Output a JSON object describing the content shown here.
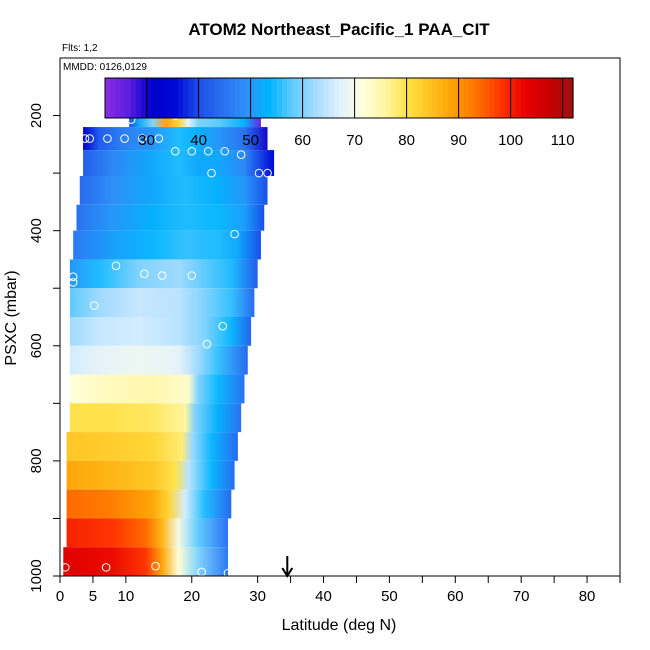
{
  "chart_data": {
    "type": "heatmap",
    "title": "ATOM2 Northeast_Pacific_1 PAA_CIT",
    "flights_note": "Flts: 1,2",
    "dates_note": "MMDD: 0126,0129",
    "xlabel": "Latitude (deg N)",
    "ylabel": "PSXC (mbar)",
    "xlim": [
      0,
      85
    ],
    "ylim": [
      1000,
      100
    ],
    "x_ticks": [
      0,
      5,
      10,
      20,
      30,
      40,
      50,
      60,
      70,
      80
    ],
    "x_minor_ticks": [
      35,
      45,
      55,
      65,
      75,
      85
    ],
    "y_ticks": [
      200,
      400,
      600,
      800,
      1000
    ],
    "y_minor_ticks": [
      300,
      500,
      700,
      900
    ],
    "colorbar": {
      "range": [
        22,
        112
      ],
      "ticks": [
        30,
        40,
        50,
        60,
        70,
        80,
        90,
        100,
        110
      ],
      "colors": [
        "#8a2be2",
        "#5a1fe0",
        "#0000c8",
        "#0008d8",
        "#1a4fe8",
        "#2a6ff0",
        "#2f8ff8",
        "#00b4ff",
        "#5fcbff",
        "#a8dcff",
        "#dff0ff",
        "#ffffe0",
        "#fff5a0",
        "#ffe040",
        "#ffbe1e",
        "#ff9a00",
        "#ff6a00",
        "#ff3000",
        "#e60000",
        "#c80000",
        "#a01010"
      ]
    },
    "marker_latitude": 34.5,
    "rows": [
      {
        "p_top": 170,
        "p_bot": 220,
        "lat_start": 10.5,
        "lat_end": 30.5,
        "stops": [
          [
            10.5,
            40
          ],
          [
            12,
            52
          ],
          [
            14,
            60
          ],
          [
            16,
            88
          ],
          [
            18,
            82
          ],
          [
            19.5,
            68
          ],
          [
            21,
            60
          ],
          [
            24,
            58
          ],
          [
            28,
            53
          ],
          [
            30.5,
            25
          ]
        ]
      },
      {
        "p_top": 220,
        "p_bot": 260,
        "lat_start": 3.5,
        "lat_end": 31.5,
        "stops": [
          [
            3.5,
            32
          ],
          [
            6,
            42
          ],
          [
            10,
            47
          ],
          [
            14,
            50
          ],
          [
            18,
            55
          ],
          [
            21,
            53
          ],
          [
            24,
            50
          ],
          [
            28,
            45
          ],
          [
            31.5,
            30
          ]
        ]
      },
      {
        "p_top": 260,
        "p_bot": 305,
        "lat_start": 3.5,
        "lat_end": 32.5,
        "stops": [
          [
            3.5,
            42
          ],
          [
            8,
            48
          ],
          [
            14,
            52
          ],
          [
            18,
            55
          ],
          [
            21,
            52
          ],
          [
            24,
            52
          ],
          [
            28,
            48
          ],
          [
            32.5,
            35
          ]
        ]
      },
      {
        "p_top": 305,
        "p_bot": 355,
        "lat_start": 3.0,
        "lat_end": 31.5,
        "stops": [
          [
            3,
            44
          ],
          [
            8,
            49
          ],
          [
            14,
            52
          ],
          [
            19,
            55
          ],
          [
            24,
            53
          ],
          [
            28,
            50
          ],
          [
            31.5,
            40
          ]
        ]
      },
      {
        "p_top": 355,
        "p_bot": 400,
        "lat_start": 2.5,
        "lat_end": 31.0,
        "stops": [
          [
            2.5,
            45
          ],
          [
            8,
            50
          ],
          [
            14,
            53
          ],
          [
            19,
            55
          ],
          [
            24,
            54
          ],
          [
            28,
            51
          ],
          [
            31,
            40
          ]
        ]
      },
      {
        "p_top": 400,
        "p_bot": 450,
        "lat_start": 2.0,
        "lat_end": 30.5,
        "stops": [
          [
            2,
            46
          ],
          [
            8,
            51
          ],
          [
            14,
            54
          ],
          [
            19,
            56
          ],
          [
            24,
            55
          ],
          [
            27,
            52
          ],
          [
            30.5,
            40
          ]
        ]
      },
      {
        "p_top": 450,
        "p_bot": 500,
        "lat_start": 1.5,
        "lat_end": 30.0,
        "stops": [
          [
            1.5,
            50
          ],
          [
            6,
            55
          ],
          [
            12,
            60
          ],
          [
            18,
            62
          ],
          [
            22,
            58
          ],
          [
            26,
            55
          ],
          [
            30,
            42
          ]
        ]
      },
      {
        "p_top": 500,
        "p_bot": 550,
        "lat_start": 1.5,
        "lat_end": 29.5,
        "stops": [
          [
            1.5,
            58
          ],
          [
            6,
            62
          ],
          [
            12,
            65
          ],
          [
            18,
            64
          ],
          [
            22,
            60
          ],
          [
            26,
            56
          ],
          [
            29.5,
            44
          ]
        ]
      },
      {
        "p_top": 550,
        "p_bot": 600,
        "lat_start": 1.5,
        "lat_end": 29.0,
        "stops": [
          [
            1.5,
            62
          ],
          [
            6,
            65
          ],
          [
            12,
            66
          ],
          [
            18,
            64
          ],
          [
            22,
            60
          ],
          [
            26,
            54
          ],
          [
            29,
            43
          ]
        ]
      },
      {
        "p_top": 600,
        "p_bot": 650,
        "lat_start": 1.5,
        "lat_end": 28.5,
        "stops": [
          [
            1.5,
            66
          ],
          [
            6,
            68
          ],
          [
            12,
            69
          ],
          [
            18,
            68
          ],
          [
            21,
            62
          ],
          [
            24,
            56
          ],
          [
            28.5,
            44
          ]
        ]
      },
      {
        "p_top": 650,
        "p_bot": 700,
        "lat_start": 1.5,
        "lat_end": 28.0,
        "stops": [
          [
            1.5,
            72
          ],
          [
            8,
            74
          ],
          [
            14,
            75
          ],
          [
            19.5,
            73
          ],
          [
            21,
            60
          ],
          [
            24,
            54
          ],
          [
            28,
            45
          ]
        ]
      },
      {
        "p_top": 700,
        "p_bot": 750,
        "lat_start": 1.5,
        "lat_end": 27.5,
        "stops": [
          [
            1.5,
            80
          ],
          [
            8,
            80
          ],
          [
            14,
            79
          ],
          [
            19,
            76
          ],
          [
            20.5,
            60
          ],
          [
            24,
            53
          ],
          [
            27.5,
            45
          ]
        ]
      },
      {
        "p_top": 750,
        "p_bot": 800,
        "lat_start": 1.0,
        "lat_end": 27.0,
        "stops": [
          [
            1,
            84
          ],
          [
            8,
            83
          ],
          [
            14,
            82
          ],
          [
            18.5,
            78
          ],
          [
            20,
            62
          ],
          [
            23,
            54
          ],
          [
            27,
            44
          ]
        ]
      },
      {
        "p_top": 800,
        "p_bot": 850,
        "lat_start": 1.0,
        "lat_end": 26.5,
        "stops": [
          [
            1,
            88
          ],
          [
            8,
            86
          ],
          [
            14,
            84
          ],
          [
            17.5,
            80
          ],
          [
            19.5,
            64
          ],
          [
            23,
            54
          ],
          [
            26.5,
            44
          ]
        ]
      },
      {
        "p_top": 850,
        "p_bot": 900,
        "lat_start": 1.0,
        "lat_end": 26.0,
        "stops": [
          [
            1,
            94
          ],
          [
            8,
            92
          ],
          [
            14,
            88
          ],
          [
            16.5,
            82
          ],
          [
            19,
            66
          ],
          [
            22,
            55
          ],
          [
            26,
            44
          ]
        ]
      },
      {
        "p_top": 900,
        "p_bot": 950,
        "lat_start": 1.0,
        "lat_end": 25.5,
        "stops": [
          [
            1,
            100
          ],
          [
            8,
            98
          ],
          [
            13,
            94
          ],
          [
            15.5,
            86
          ],
          [
            18,
            70
          ],
          [
            21,
            58
          ],
          [
            25.5,
            45
          ]
        ]
      },
      {
        "p_top": 950,
        "p_bot": 1000,
        "lat_start": 0.5,
        "lat_end": 25.5,
        "stops": [
          [
            0.5,
            104
          ],
          [
            8,
            102
          ],
          [
            13,
            98
          ],
          [
            15.5,
            88
          ],
          [
            18,
            72
          ],
          [
            21,
            60
          ],
          [
            25.5,
            46
          ]
        ]
      }
    ],
    "points": [
      {
        "lat": 10.8,
        "p": 207
      },
      {
        "lat": 17.5,
        "p": 200
      },
      {
        "lat": 30.2,
        "p": 182
      },
      {
        "lat": 3.8,
        "p": 240
      },
      {
        "lat": 4.5,
        "p": 240
      },
      {
        "lat": 7.2,
        "p": 240
      },
      {
        "lat": 9.8,
        "p": 240
      },
      {
        "lat": 12.5,
        "p": 240
      },
      {
        "lat": 15,
        "p": 240
      },
      {
        "lat": 17.5,
        "p": 262
      },
      {
        "lat": 20,
        "p": 262
      },
      {
        "lat": 22.5,
        "p": 262
      },
      {
        "lat": 25,
        "p": 262
      },
      {
        "lat": 27.5,
        "p": 268
      },
      {
        "lat": 23,
        "p": 300
      },
      {
        "lat": 30.2,
        "p": 300
      },
      {
        "lat": 31.5,
        "p": 300
      },
      {
        "lat": 26.5,
        "p": 406
      },
      {
        "lat": 2,
        "p": 480
      },
      {
        "lat": 2,
        "p": 490
      },
      {
        "lat": 8.5,
        "p": 461
      },
      {
        "lat": 12.8,
        "p": 475
      },
      {
        "lat": 15.5,
        "p": 478
      },
      {
        "lat": 20,
        "p": 478
      },
      {
        "lat": 5.2,
        "p": 530
      },
      {
        "lat": 24.7,
        "p": 566
      },
      {
        "lat": 22.3,
        "p": 597
      },
      {
        "lat": 0.8,
        "p": 985
      },
      {
        "lat": 7,
        "p": 985
      },
      {
        "lat": 14.5,
        "p": 983
      },
      {
        "lat": 21.5,
        "p": 993
      },
      {
        "lat": 25.5,
        "p": 995
      }
    ]
  }
}
